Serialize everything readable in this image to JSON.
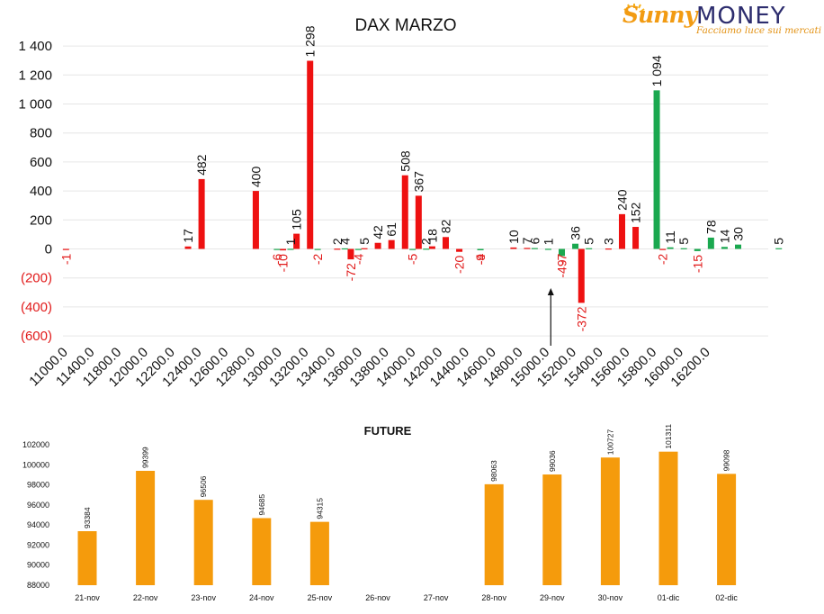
{
  "logo": {
    "brand_a": "Sunny",
    "brand_b": "MONEY",
    "tagline": "Facciamo luce sui mercati"
  },
  "colors": {
    "call": "#ee1111",
    "put": "#1aa84f",
    "neg_label": "#e11b1b",
    "future": "#f59b0c",
    "grid": "#e6e6e6"
  },
  "chart_data": [
    {
      "type": "bar",
      "title": "DAX MARZO",
      "ylim": [
        -600,
        1400
      ],
      "yticks": [
        {
          "v": 1400,
          "label": "1 400"
        },
        {
          "v": 1200,
          "label": "1 200"
        },
        {
          "v": 1000,
          "label": "1 000"
        },
        {
          "v": 800,
          "label": "800"
        },
        {
          "v": 600,
          "label": "600"
        },
        {
          "v": 400,
          "label": "400"
        },
        {
          "v": 200,
          "label": "200"
        },
        {
          "v": 0,
          "label": "0"
        },
        {
          "v": -200,
          "label": "(200)"
        },
        {
          "v": -400,
          "label": "(400)"
        },
        {
          "v": -600,
          "label": "(600)"
        }
      ],
      "xticks": [
        "11000.0",
        "11400.0",
        "11800.0",
        "12000.0",
        "12200.0",
        "12400.0",
        "12600.0",
        "12800.0",
        "13000.0",
        "13200.0",
        "13400.0",
        "13600.0",
        "13800.0",
        "14000.0",
        "14200.0",
        "14400.0",
        "14600.0",
        "14800.0",
        "15000.0",
        "15200.0",
        "15400.0",
        "15600.0",
        "15800.0",
        "16000.0",
        "16200.0"
      ],
      "xrange": [
        11000,
        16200
      ],
      "grid": true,
      "marker_strike": 14600,
      "series": [
        {
          "color": "red",
          "points": [
            {
              "x": 11050,
              "v": -1,
              "label": "-1"
            },
            {
              "x": 11950,
              "v": 17,
              "label": "17"
            },
            {
              "x": 12050,
              "v": 482,
              "label": "482"
            },
            {
              "x": 12450,
              "v": 400,
              "label": "400"
            },
            {
              "x": 12650,
              "v": -10,
              "label": "-10"
            },
            {
              "x": 12750,
              "v": 105,
              "label": "105"
            },
            {
              "x": 12850,
              "v": 1298,
              "label": "1 298"
            },
            {
              "x": 13050,
              "v": 2,
              "label": "2"
            },
            {
              "x": 13150,
              "v": -72,
              "label": "-72"
            },
            {
              "x": 13250,
              "v": 5,
              "label": "5"
            },
            {
              "x": 13350,
              "v": 42,
              "label": "42"
            },
            {
              "x": 13450,
              "v": 61,
              "label": "61"
            },
            {
              "x": 13550,
              "v": 508,
              "label": "508"
            },
            {
              "x": 13650,
              "v": 367,
              "label": "367"
            },
            {
              "x": 13750,
              "v": 18,
              "label": "18"
            },
            {
              "x": 13850,
              "v": 82,
              "label": "82"
            },
            {
              "x": 13950,
              "v": -20,
              "label": "-20"
            },
            {
              "x": 14350,
              "v": 10,
              "label": "10"
            },
            {
              "x": 14450,
              "v": 7,
              "label": "7"
            },
            {
              "x": 14850,
              "v": -372,
              "label": "-372"
            },
            {
              "x": 15050,
              "v": 3,
              "label": "3"
            },
            {
              "x": 15150,
              "v": 240,
              "label": "240"
            },
            {
              "x": 15250,
              "v": 152,
              "label": "152"
            },
            {
              "x": 15450,
              "v": -2,
              "label": "-2"
            }
          ]
        },
        {
          "color": "green",
          "points": [
            {
              "x": 12550,
              "v": -6,
              "label": "-6"
            },
            {
              "x": 12650,
              "v": 1,
              "label": "1"
            },
            {
              "x": 12850,
              "v": -2,
              "label": "-2"
            },
            {
              "x": 13050,
              "v": 4,
              "label": "4"
            },
            {
              "x": 13150,
              "v": -4,
              "label": "-4"
            },
            {
              "x": 13550,
              "v": -5,
              "label": "-5"
            },
            {
              "x": 13650,
              "v": 2,
              "label": "2"
            },
            {
              "x": 14050,
              "v": -9,
              "label": "-9"
            },
            {
              "x": 14050,
              "v": -4,
              "label": "-4"
            },
            {
              "x": 14450,
              "v": 6,
              "label": "6"
            },
            {
              "x": 14550,
              "v": 1,
              "label": "1"
            },
            {
              "x": 14650,
              "v": -49,
              "label": "-49"
            },
            {
              "x": 14650,
              "v": -7,
              "label": "-7"
            },
            {
              "x": 14750,
              "v": 36,
              "label": "36"
            },
            {
              "x": 14850,
              "v": 5,
              "label": "5"
            },
            {
              "x": 15350,
              "v": 1094,
              "label": "1 094"
            },
            {
              "x": 15450,
              "v": 11,
              "label": "11"
            },
            {
              "x": 15550,
              "v": 5,
              "label": "5"
            },
            {
              "x": 15650,
              "v": -15,
              "label": "-15"
            },
            {
              "x": 15750,
              "v": 78,
              "label": "78"
            },
            {
              "x": 15850,
              "v": 14,
              "label": "14"
            },
            {
              "x": 15950,
              "v": 30,
              "label": "30"
            },
            {
              "x": 16250,
              "v": 5,
              "label": "5"
            }
          ]
        }
      ]
    },
    {
      "type": "bar",
      "title": "FUTURE",
      "ylim": [
        88000,
        102000
      ],
      "yticks": [
        102000,
        100000,
        98000,
        96000,
        94000,
        92000,
        90000,
        88000
      ],
      "categories": [
        "21-nov",
        "22-nov",
        "23-nov",
        "24-nov",
        "25-nov",
        "26-nov",
        "27-nov",
        "28-nov",
        "29-nov",
        "30-nov",
        "01-dic",
        "02-dic"
      ],
      "values": [
        93384,
        99399,
        96506,
        94685,
        94315,
        null,
        null,
        98063,
        99036,
        100727,
        101311,
        99098
      ],
      "grid": false
    }
  ]
}
